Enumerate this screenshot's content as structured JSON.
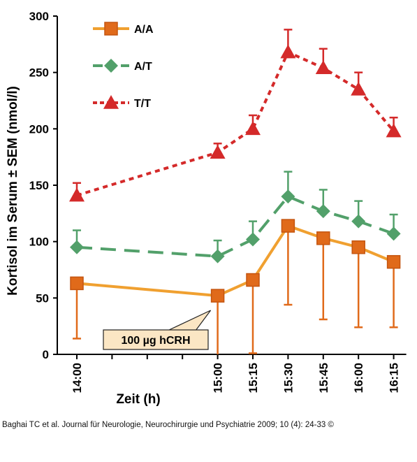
{
  "chart_data": {
    "type": "line",
    "ylabel": "Kortisol im Serum ± SEM (nmol/l)",
    "xlabel": "Zeit (h)",
    "ylim": [
      0,
      300
    ],
    "yticks": [
      0,
      50,
      100,
      150,
      200,
      250,
      300
    ],
    "x": [
      "14:00",
      "15:00",
      "15:15",
      "15:30",
      "15:45",
      "16:00",
      "16:15"
    ],
    "x_minutes": [
      0,
      60,
      75,
      90,
      105,
      120,
      135
    ],
    "grid": false,
    "legend_position": "top-left",
    "series": [
      {
        "name": "A/A",
        "color": "#f0a030",
        "marker_color": "#e06a1a",
        "marker": "square",
        "line_style": "solid",
        "values": [
          63,
          52,
          66,
          114,
          103,
          95,
          82
        ],
        "err_plus": [
          0,
          0,
          0,
          0,
          0,
          0,
          0
        ],
        "err_minus": [
          49,
          52,
          65,
          70,
          72,
          71,
          58
        ]
      },
      {
        "name": "A/T",
        "color": "#52a06a",
        "marker_color": "#52a06a",
        "marker": "diamond",
        "line_style": "dashed",
        "values": [
          95,
          87,
          102,
          140,
          127,
          118,
          107
        ],
        "err_plus": [
          15,
          14,
          16,
          22,
          19,
          18,
          17
        ],
        "err_minus": [
          0,
          0,
          0,
          0,
          0,
          0,
          0
        ]
      },
      {
        "name": "T/T",
        "color": "#d42a2a",
        "marker_color": "#d42a2a",
        "marker": "triangle",
        "line_style": "dotted",
        "values": [
          141,
          179,
          200,
          268,
          254,
          235,
          198
        ],
        "err_plus": [
          11,
          8,
          12,
          20,
          17,
          15,
          12
        ],
        "err_minus": [
          0,
          0,
          0,
          0,
          0,
          0,
          0
        ]
      }
    ],
    "annotations": [
      {
        "text": "100 µg hCRH",
        "points_to": "15:00"
      }
    ]
  },
  "citation": "Baghai TC et al. Journal für Neurologie, Neurochirurgie und Psychiatrie 2009; 10 (4): 24-33 ©"
}
